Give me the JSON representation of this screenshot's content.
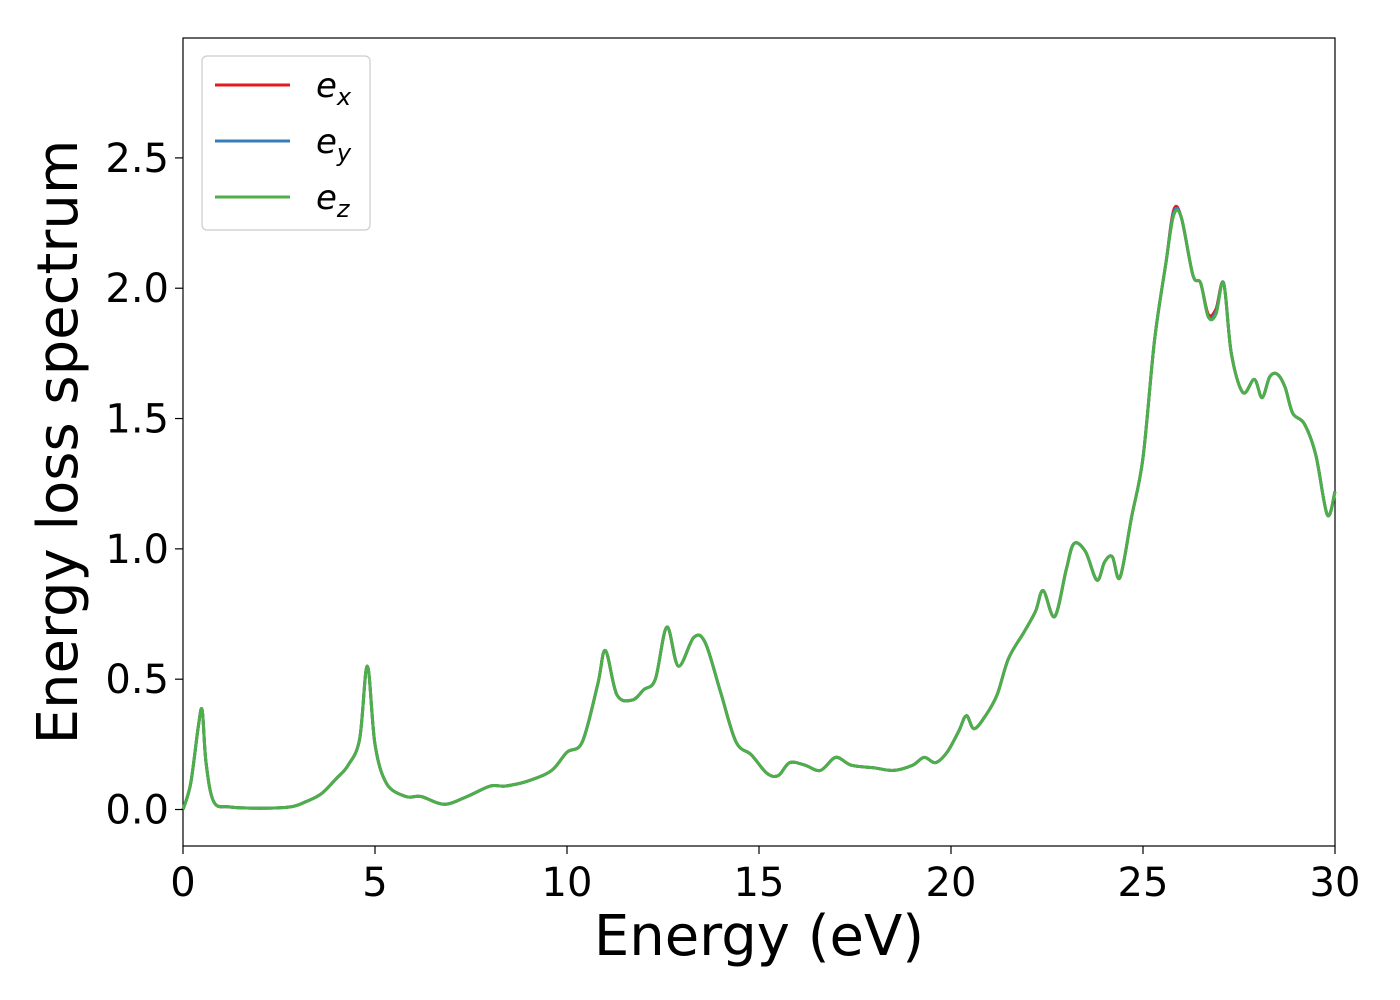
{
  "chart_data": {
    "type": "line",
    "title": "",
    "xlabel": "Energy (eV)",
    "ylabel": "Energy loss spectrum",
    "xlim": [
      0,
      30
    ],
    "ylim": [
      -0.14,
      2.96
    ],
    "xticks": [
      0,
      5,
      10,
      15,
      20,
      25,
      30
    ],
    "xtick_labels": [
      "0",
      "5",
      "10",
      "15",
      "20",
      "25",
      "30"
    ],
    "yticks": [
      0.0,
      0.5,
      1.0,
      1.5,
      2.0,
      2.5
    ],
    "ytick_labels": [
      "0.0",
      "0.5",
      "1.0",
      "1.5",
      "2.0",
      "2.5"
    ],
    "grid": false,
    "legend_position": "top-left",
    "series": [
      {
        "name": "e",
        "subscript": "x",
        "color": "#e41a1c",
        "x": [
          0,
          0.2,
          0.4,
          0.5,
          0.6,
          0.8,
          1.2,
          2,
          2.8,
          3.2,
          3.6,
          4,
          4.3,
          4.6,
          4.8,
          5,
          5.3,
          5.8,
          6.2,
          6.8,
          7.4,
          8,
          8.4,
          9,
          9.6,
          10,
          10.4,
          10.8,
          11,
          11.3,
          11.7,
          12,
          12.3,
          12.6,
          12.9,
          13.3,
          13.6,
          14,
          14.4,
          14.8,
          15.2,
          15.5,
          15.8,
          16.2,
          16.6,
          17,
          17.4,
          18,
          18.5,
          19,
          19.3,
          19.6,
          19.9,
          20.2,
          20.4,
          20.6,
          20.9,
          21.2,
          21.5,
          21.9,
          22.2,
          22.4,
          22.7,
          23,
          23.2,
          23.5,
          23.8,
          24,
          24.2,
          24.4,
          24.7,
          25,
          25.3,
          25.6,
          25.8,
          26,
          26.3,
          26.5,
          26.7,
          26.9,
          27.1,
          27.3,
          27.6,
          27.9,
          28.1,
          28.3,
          28.5,
          28.7,
          28.9,
          29.2,
          29.5,
          29.8,
          30
        ],
        "y": [
          0,
          0.1,
          0.32,
          0.38,
          0.18,
          0.03,
          0.01,
          0.005,
          0.01,
          0.03,
          0.06,
          0.12,
          0.17,
          0.27,
          0.55,
          0.25,
          0.1,
          0.05,
          0.05,
          0.02,
          0.05,
          0.09,
          0.09,
          0.11,
          0.15,
          0.22,
          0.26,
          0.48,
          0.61,
          0.44,
          0.42,
          0.46,
          0.5,
          0.7,
          0.55,
          0.66,
          0.64,
          0.45,
          0.26,
          0.21,
          0.14,
          0.13,
          0.18,
          0.17,
          0.15,
          0.2,
          0.17,
          0.16,
          0.15,
          0.17,
          0.2,
          0.18,
          0.22,
          0.3,
          0.36,
          0.31,
          0.36,
          0.44,
          0.58,
          0.68,
          0.76,
          0.84,
          0.74,
          0.92,
          1.02,
          0.99,
          0.88,
          0.95,
          0.97,
          0.89,
          1.12,
          1.35,
          1.8,
          2.1,
          2.3,
          2.27,
          2.05,
          2.02,
          1.9,
          1.92,
          2.02,
          1.75,
          1.6,
          1.65,
          1.58,
          1.66,
          1.67,
          1.62,
          1.52,
          1.48,
          1.36,
          1.13,
          1.22
        ]
      },
      {
        "name": "e",
        "subscript": "y",
        "color": "#377eb8",
        "x": [
          0,
          0.2,
          0.4,
          0.5,
          0.6,
          0.8,
          1.2,
          2,
          2.8,
          3.2,
          3.6,
          4,
          4.3,
          4.6,
          4.8,
          5,
          5.3,
          5.8,
          6.2,
          6.8,
          7.4,
          8,
          8.4,
          9,
          9.6,
          10,
          10.4,
          10.8,
          11,
          11.3,
          11.7,
          12,
          12.3,
          12.6,
          12.9,
          13.3,
          13.6,
          14,
          14.4,
          14.8,
          15.2,
          15.5,
          15.8,
          16.2,
          16.6,
          17,
          17.4,
          18,
          18.5,
          19,
          19.3,
          19.6,
          19.9,
          20.2,
          20.4,
          20.6,
          20.9,
          21.2,
          21.5,
          21.9,
          22.2,
          22.4,
          22.7,
          23,
          23.2,
          23.5,
          23.8,
          24,
          24.2,
          24.4,
          24.7,
          25,
          25.3,
          25.6,
          25.8,
          26,
          26.3,
          26.5,
          26.7,
          26.9,
          27.1,
          27.3,
          27.6,
          27.9,
          28.1,
          28.3,
          28.5,
          28.7,
          28.9,
          29.2,
          29.5,
          29.8,
          30
        ],
        "y": [
          0,
          0.1,
          0.32,
          0.38,
          0.18,
          0.03,
          0.01,
          0.005,
          0.01,
          0.03,
          0.06,
          0.12,
          0.17,
          0.27,
          0.55,
          0.25,
          0.1,
          0.05,
          0.05,
          0.02,
          0.05,
          0.09,
          0.09,
          0.11,
          0.15,
          0.22,
          0.26,
          0.48,
          0.61,
          0.44,
          0.42,
          0.46,
          0.5,
          0.7,
          0.55,
          0.66,
          0.64,
          0.45,
          0.26,
          0.21,
          0.14,
          0.13,
          0.18,
          0.17,
          0.15,
          0.2,
          0.17,
          0.16,
          0.15,
          0.17,
          0.2,
          0.18,
          0.22,
          0.3,
          0.36,
          0.31,
          0.36,
          0.44,
          0.58,
          0.68,
          0.76,
          0.84,
          0.74,
          0.92,
          1.02,
          0.99,
          0.88,
          0.95,
          0.97,
          0.89,
          1.12,
          1.35,
          1.8,
          2.1,
          2.29,
          2.27,
          2.05,
          2.02,
          1.89,
          1.91,
          2.02,
          1.75,
          1.6,
          1.65,
          1.58,
          1.66,
          1.67,
          1.62,
          1.52,
          1.48,
          1.36,
          1.13,
          1.22
        ]
      },
      {
        "name": "e",
        "subscript": "z",
        "color": "#4daf4a",
        "x": [
          0,
          0.2,
          0.4,
          0.5,
          0.6,
          0.8,
          1.2,
          2,
          2.8,
          3.2,
          3.6,
          4,
          4.3,
          4.6,
          4.8,
          5,
          5.3,
          5.8,
          6.2,
          6.8,
          7.4,
          8,
          8.4,
          9,
          9.6,
          10,
          10.4,
          10.8,
          11,
          11.3,
          11.7,
          12,
          12.3,
          12.6,
          12.9,
          13.3,
          13.6,
          14,
          14.4,
          14.8,
          15.2,
          15.5,
          15.8,
          16.2,
          16.6,
          17,
          17.4,
          18,
          18.5,
          19,
          19.3,
          19.6,
          19.9,
          20.2,
          20.4,
          20.6,
          20.9,
          21.2,
          21.5,
          21.9,
          22.2,
          22.4,
          22.7,
          23,
          23.2,
          23.5,
          23.8,
          24,
          24.2,
          24.4,
          24.7,
          25,
          25.3,
          25.6,
          25.8,
          26,
          26.3,
          26.5,
          26.7,
          26.9,
          27.1,
          27.3,
          27.6,
          27.9,
          28.1,
          28.3,
          28.5,
          28.7,
          28.9,
          29.2,
          29.5,
          29.8,
          30
        ],
        "y": [
          0,
          0.1,
          0.32,
          0.38,
          0.18,
          0.03,
          0.01,
          0.005,
          0.01,
          0.03,
          0.06,
          0.12,
          0.17,
          0.27,
          0.55,
          0.25,
          0.1,
          0.05,
          0.05,
          0.02,
          0.05,
          0.09,
          0.09,
          0.11,
          0.15,
          0.22,
          0.26,
          0.48,
          0.61,
          0.44,
          0.42,
          0.46,
          0.5,
          0.7,
          0.55,
          0.66,
          0.64,
          0.45,
          0.26,
          0.21,
          0.14,
          0.13,
          0.18,
          0.17,
          0.15,
          0.2,
          0.17,
          0.16,
          0.15,
          0.17,
          0.2,
          0.18,
          0.22,
          0.3,
          0.36,
          0.31,
          0.36,
          0.44,
          0.58,
          0.68,
          0.76,
          0.84,
          0.74,
          0.92,
          1.02,
          0.99,
          0.88,
          0.95,
          0.97,
          0.89,
          1.12,
          1.35,
          1.8,
          2.1,
          2.28,
          2.27,
          2.05,
          2.02,
          1.89,
          1.9,
          2.02,
          1.75,
          1.6,
          1.65,
          1.58,
          1.66,
          1.67,
          1.62,
          1.52,
          1.48,
          1.36,
          1.13,
          1.22
        ]
      }
    ]
  }
}
